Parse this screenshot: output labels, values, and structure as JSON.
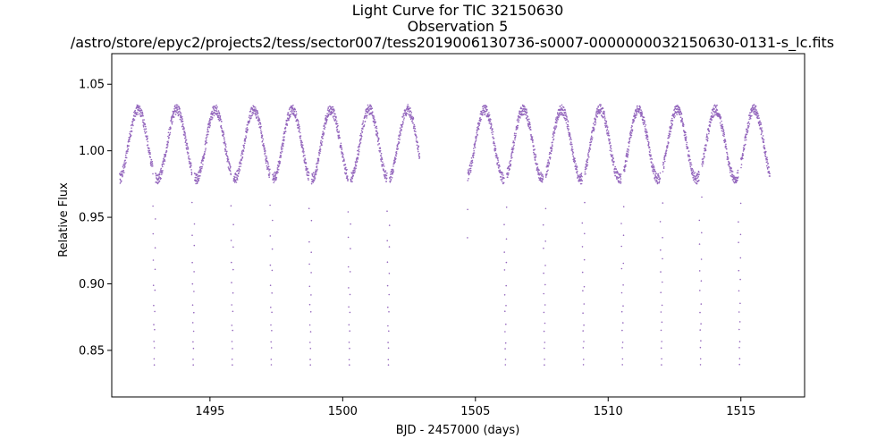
{
  "chart_data": {
    "type": "scatter",
    "title_lines": [
      "Light Curve for TIC 32150630",
      "Observation 5",
      "/astro/store/epyc2/projects2/tess/sector007/tess2019006130736-s0007-0000000032150630-0131-s_lc.fits"
    ],
    "xlabel": "BJD - 2457000 (days)",
    "ylabel": "Relative Flux",
    "xlim": [
      1491.3,
      1517.4
    ],
    "ylim": [
      0.815,
      1.073
    ],
    "xticks": [
      1495,
      1500,
      1505,
      1510,
      1515
    ],
    "yticks": [
      0.85,
      0.9,
      0.95,
      1.0,
      1.05
    ],
    "xtick_labels": [
      "1495",
      "1500",
      "1505",
      "1510",
      "1515"
    ],
    "ytick_labels": [
      "0.85",
      "0.90",
      "0.95",
      "1.00",
      "1.05"
    ],
    "grid": false,
    "marker_color": "#9467bd",
    "segments": [
      {
        "x_start": 1491.6,
        "x_end": 1502.9
      },
      {
        "x_start": 1504.7,
        "x_end": 1516.1
      }
    ],
    "variability": {
      "mean_flux": 1.005,
      "amplitude": 0.026,
      "period_days": 1.45,
      "first_peak": 1492.3
    },
    "eclipse": {
      "period_days": 1.47,
      "first_center": 1492.9,
      "depth_flux": 0.835
    }
  }
}
